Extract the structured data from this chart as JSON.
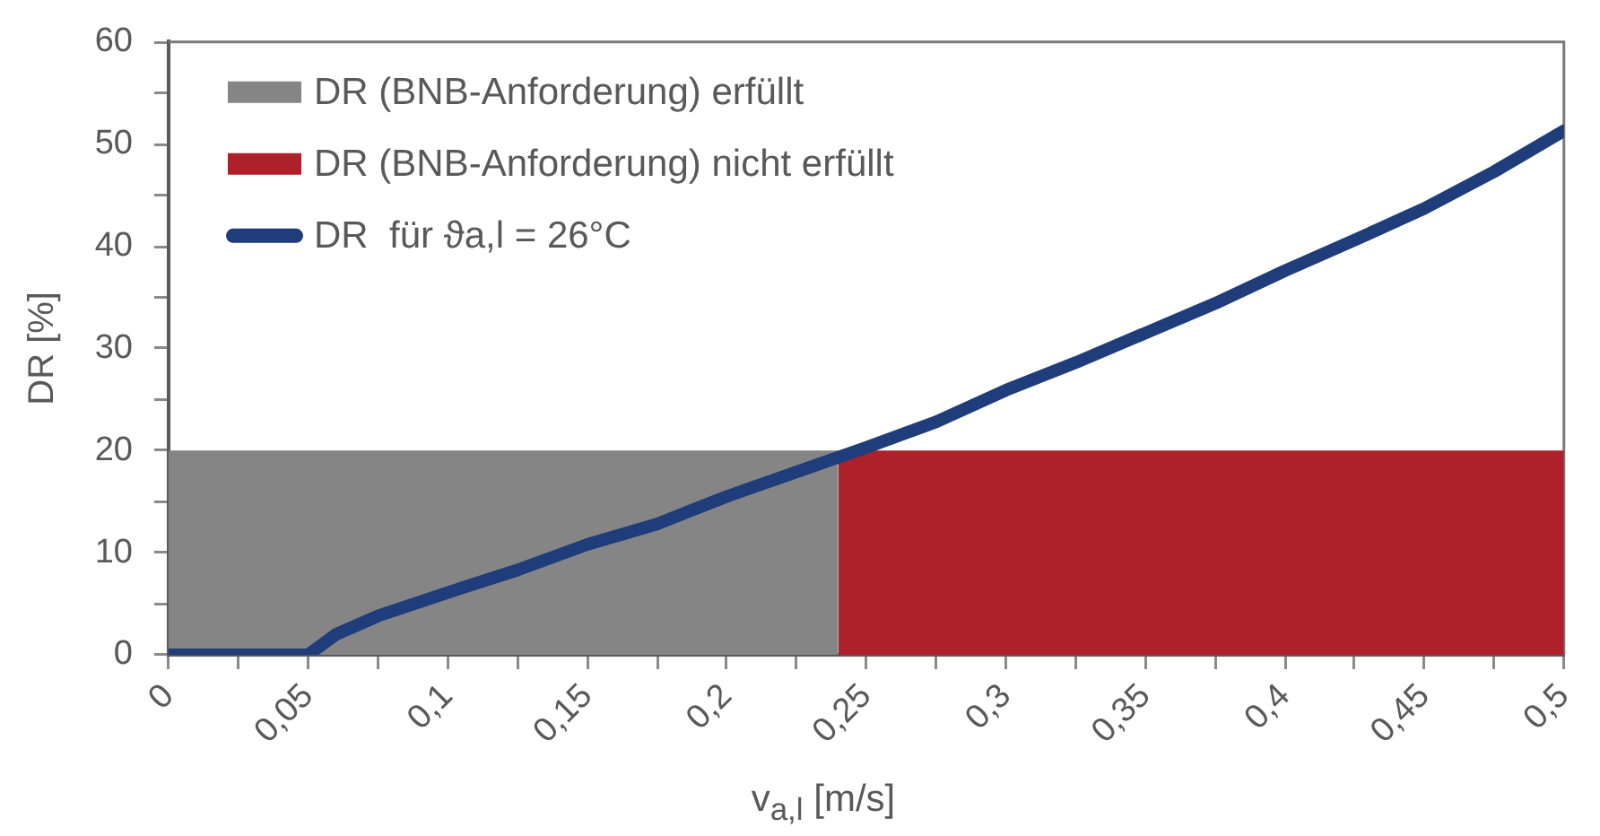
{
  "chart_data": {
    "type": "line",
    "xlabel": "v$_{a,l}$ [m/s]",
    "ylabel": "DR [%]",
    "xlim": [
      0,
      0.5
    ],
    "xticks": [
      0,
      {
        "value": 0.025,
        "label": null
      },
      {
        "value": 0.05,
        "label": "0,05"
      },
      {
        "value": 0.075,
        "label": null
      },
      {
        "value": 0.1,
        "label": "0,1"
      },
      {
        "value": 0.125,
        "label": null
      },
      {
        "value": 0.15,
        "label": "0,15"
      },
      {
        "value": 0.175,
        "label": null
      },
      {
        "value": 0.2,
        "label": "0,2"
      },
      {
        "value": 0.225,
        "label": null
      },
      {
        "value": 0.25,
        "label": "0,25"
      },
      {
        "value": 0.275,
        "label": null
      },
      {
        "value": 0.3,
        "label": "0,3"
      },
      {
        "value": 0.325,
        "label": null
      },
      {
        "value": 0.35,
        "label": "0,35"
      },
      {
        "value": 0.375,
        "label": null
      },
      {
        "value": 0.4,
        "label": "0,4"
      },
      {
        "value": 0.425,
        "label": null
      },
      {
        "value": 0.45,
        "label": "0,45"
      },
      {
        "value": 0.475,
        "label": null
      },
      {
        "value": 0.5,
        "label": "0,5"
      }
    ],
    "ylim": [
      0,
      60
    ],
    "yticks": [
      0,
      {
        "value": 5,
        "label": null
      },
      10,
      {
        "value": 15,
        "label": null
      },
      20,
      {
        "value": 25,
        "label": null
      },
      30,
      {
        "value": 35,
        "label": null
      },
      40,
      {
        "value": 45,
        "label": null
      },
      50,
      {
        "value": 55,
        "label": null
      },
      60
    ],
    "grid": false,
    "legend": "top left",
    "marker": "none",
    "line_style": "solid",
    "series": [
      {
        "name": "DR (BNB-Anforderung) erfüllt",
        "type": "area",
        "color": "#858585",
        "x": [
          0,
          0.24
        ],
        "values": [
          20,
          20
        ]
      },
      {
        "name": "DR (BNB-Anforderung) nicht erfüllt",
        "type": "area",
        "color": "#ae212b",
        "x": [
          0.24,
          0.5
        ],
        "values": [
          20,
          20
        ]
      },
      {
        "name": "DR  für ϑa,l = 26°C",
        "type": "line",
        "color": "#1f3d7a",
        "x": [
          0,
          0.05,
          0.055,
          0.06,
          0.075,
          0.1,
          0.125,
          0.15,
          0.175,
          0.2,
          0.225,
          0.25,
          0.275,
          0.3,
          0.325,
          0.35,
          0.375,
          0.4,
          0.425,
          0.45,
          0.475,
          0.5
        ],
        "values": [
          0,
          0,
          1,
          2,
          3.8,
          6.1,
          8.3,
          10.8,
          12.8,
          15.5,
          17.9,
          20.3,
          22.8,
          25.9,
          28.6,
          31.5,
          34.4,
          37.6,
          40.6,
          43.7,
          47.3,
          51.3
        ]
      }
    ]
  }
}
